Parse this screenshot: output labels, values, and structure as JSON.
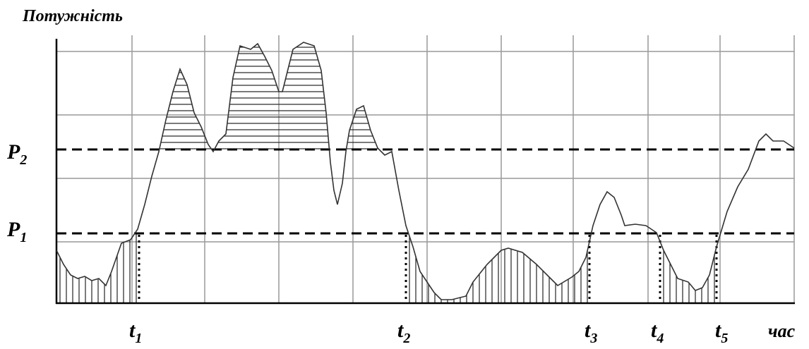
{
  "axis_label_y": "Потужність",
  "axis_label_x": "час",
  "levels": [
    {
      "symbol": "P",
      "index": "2"
    },
    {
      "symbol": "P",
      "index": "1"
    }
  ],
  "times": [
    {
      "symbol": "t",
      "index": "1"
    },
    {
      "symbol": "t",
      "index": "2"
    },
    {
      "symbol": "t",
      "index": "3"
    },
    {
      "symbol": "t",
      "index": "4"
    },
    {
      "symbol": "t",
      "index": "5"
    }
  ]
}
